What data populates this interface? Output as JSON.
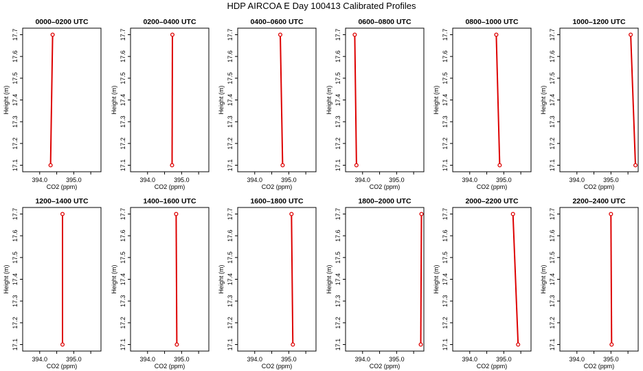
{
  "title": "HDP AIRCOA E  Day 100413  Calibrated Profiles",
  "chart_data": {
    "type": "line",
    "xlabel": "CO2 (ppm)",
    "ylabel": "Height (m)",
    "xlim": [
      393.5,
      395.8
    ],
    "ylim": [
      17.07,
      17.73
    ],
    "xticks": [
      394.0,
      394.5,
      395.0,
      395.5
    ],
    "xtick_labels": [
      "394.0",
      "",
      "395.0",
      ""
    ],
    "yticks": [
      17.1,
      17.2,
      17.3,
      17.4,
      17.5,
      17.6,
      17.7
    ],
    "ytick_labels": [
      "17.1",
      "17.2",
      "17.3",
      "17.4",
      "17.5",
      "17.6",
      "17.7"
    ],
    "line_color": "#dd0000",
    "marker_color": "#dd0000",
    "panels": [
      {
        "title": "0000–0200 UTC",
        "x": [
          394.38,
          394.32
        ],
        "y": [
          17.7,
          17.1
        ]
      },
      {
        "title": "0200–0400 UTC",
        "x": [
          394.73,
          394.72
        ],
        "y": [
          17.7,
          17.1
        ]
      },
      {
        "title": "0400–0600 UTC",
        "x": [
          394.75,
          394.82
        ],
        "y": [
          17.7,
          17.1
        ]
      },
      {
        "title": "0600–0800 UTC",
        "x": [
          393.77,
          393.82
        ],
        "y": [
          17.7,
          17.1
        ]
      },
      {
        "title": "0800–1000 UTC",
        "x": [
          394.78,
          394.88
        ],
        "y": [
          17.7,
          17.1
        ]
      },
      {
        "title": "1000–1200 UTC",
        "x": [
          395.58,
          395.72
        ],
        "y": [
          17.7,
          17.1
        ]
      },
      {
        "title": "1200–1400 UTC",
        "x": [
          394.67,
          394.67
        ],
        "y": [
          17.7,
          17.1
        ]
      },
      {
        "title": "1400–1600 UTC",
        "x": [
          394.84,
          394.86
        ],
        "y": [
          17.7,
          17.1
        ]
      },
      {
        "title": "1600–1800 UTC",
        "x": [
          395.08,
          395.12
        ],
        "y": [
          17.7,
          17.1
        ]
      },
      {
        "title": "1800–2000 UTC",
        "x": [
          395.73,
          395.71
        ],
        "y": [
          17.7,
          17.1
        ]
      },
      {
        "title": "2000–2200 UTC",
        "x": [
          395.27,
          395.42
        ],
        "y": [
          17.7,
          17.1
        ]
      },
      {
        "title": "2200–2400 UTC",
        "x": [
          395.0,
          395.02
        ],
        "y": [
          17.7,
          17.1
        ]
      }
    ]
  }
}
